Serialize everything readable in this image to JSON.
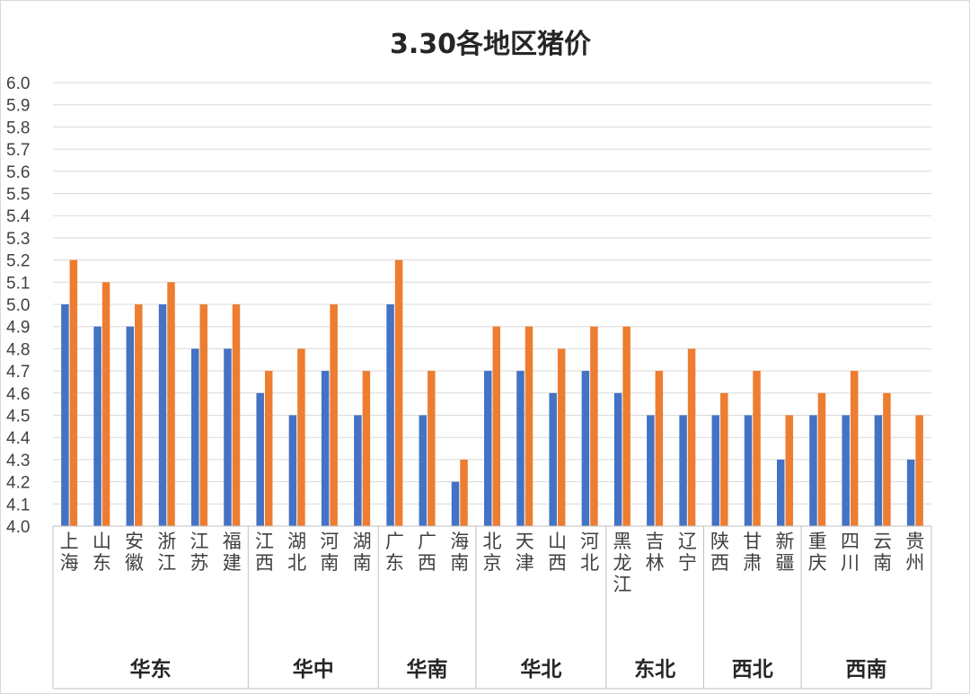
{
  "chart_data": {
    "type": "bar",
    "title": "3.30各地区猪价",
    "xlabel": "",
    "ylabel": "",
    "ylim": [
      4.0,
      6.0
    ],
    "y_ticks": [
      "4.0",
      "4.1",
      "4.2",
      "4.3",
      "4.4",
      "4.5",
      "4.6",
      "4.7",
      "4.8",
      "4.9",
      "5.0",
      "5.1",
      "5.2",
      "5.3",
      "5.4",
      "5.5",
      "5.6",
      "5.7",
      "5.8",
      "5.9",
      "6.0"
    ],
    "grid": true,
    "legend": "none",
    "categories": [
      "上海",
      "山东",
      "安徽",
      "浙江",
      "江苏",
      "福建",
      "江西",
      "湖北",
      "河南",
      "湖南",
      "广东",
      "广西",
      "海南",
      "北京",
      "天津",
      "山西",
      "河北",
      "黑龙江",
      "吉林",
      "辽宁",
      "陕西",
      "甘肃",
      "新疆",
      "重庆",
      "四川",
      "云南",
      "贵州"
    ],
    "groups": [
      {
        "name": "华东",
        "count": 6
      },
      {
        "name": "华中",
        "count": 4
      },
      {
        "name": "华南",
        "count": 3
      },
      {
        "name": "华北",
        "count": 4
      },
      {
        "name": "东北",
        "count": 3
      },
      {
        "name": "西北",
        "count": 3
      },
      {
        "name": "西南",
        "count": 4
      }
    ],
    "series": [
      {
        "color": "#4472c4",
        "values": [
          5.0,
          4.9,
          4.9,
          5.0,
          4.8,
          4.8,
          4.6,
          4.5,
          4.7,
          4.5,
          5.0,
          4.5,
          4.2,
          4.7,
          4.7,
          4.6,
          4.7,
          4.6,
          4.5,
          4.5,
          4.5,
          4.5,
          4.3,
          4.5,
          4.5,
          4.5,
          4.3
        ]
      },
      {
        "color": "#ed7d31",
        "values": [
          5.2,
          5.1,
          5.0,
          5.1,
          5.0,
          5.0,
          4.7,
          4.8,
          5.0,
          4.7,
          5.2,
          4.7,
          4.3,
          4.9,
          4.9,
          4.8,
          4.9,
          4.9,
          4.7,
          4.8,
          4.6,
          4.7,
          4.5,
          4.6,
          4.7,
          4.6,
          4.5
        ]
      }
    ]
  }
}
